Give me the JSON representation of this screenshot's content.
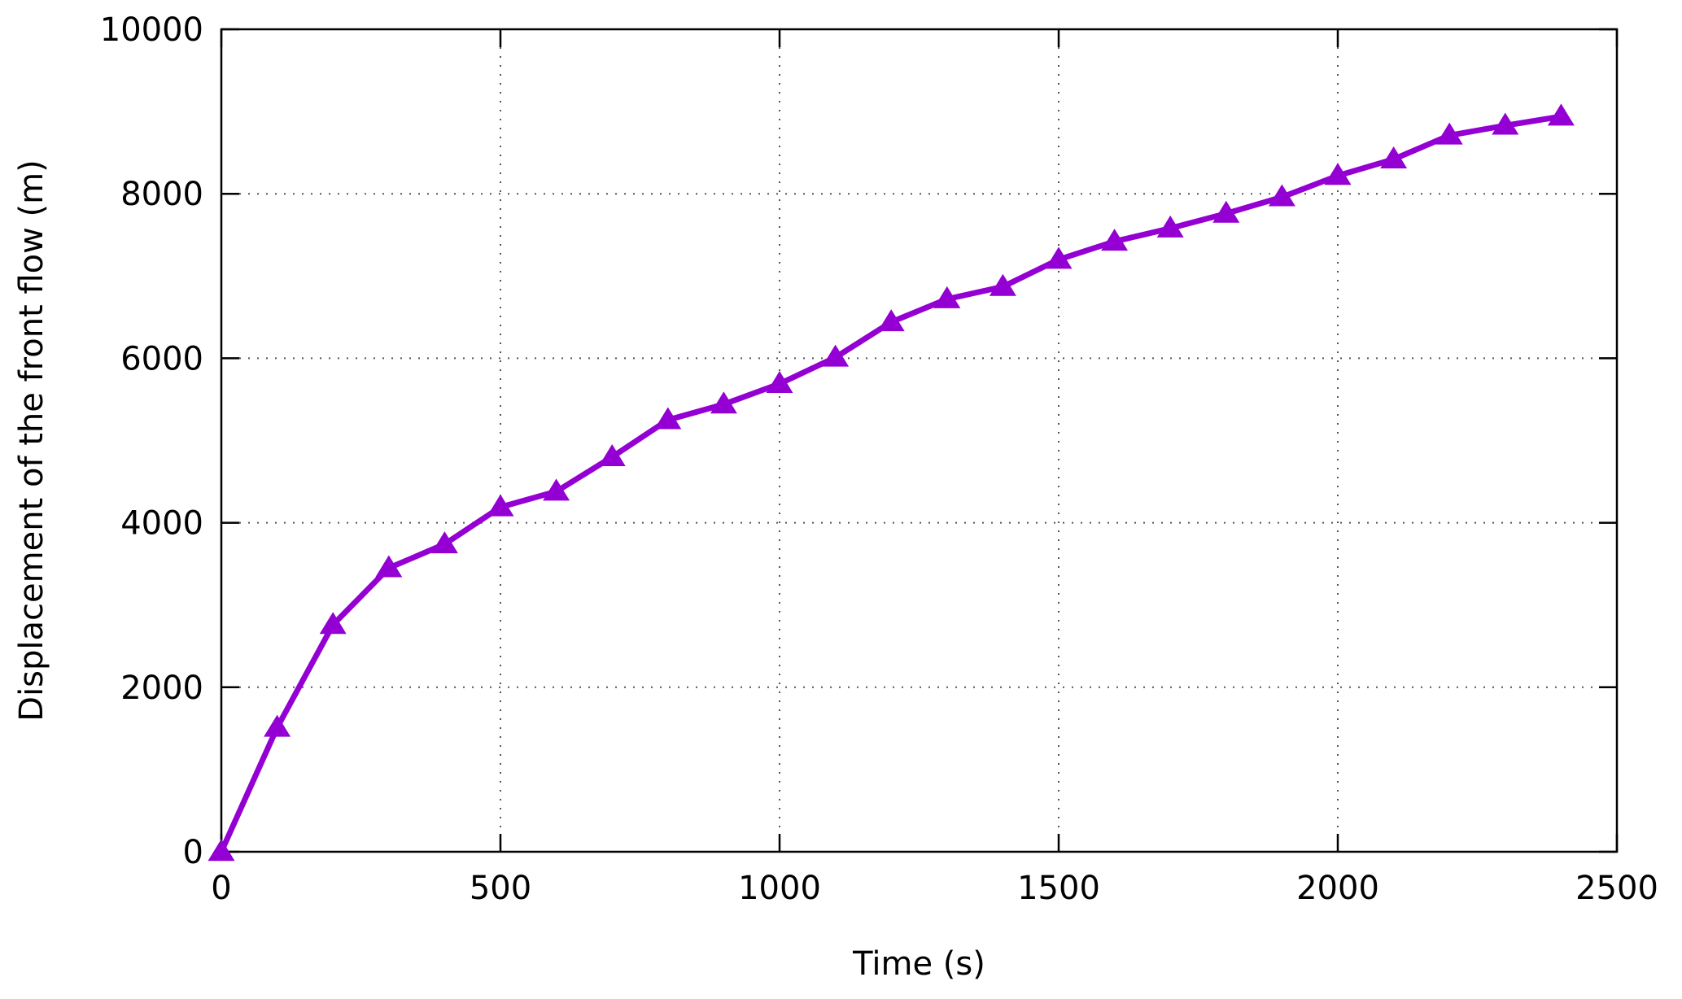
{
  "chart_data": {
    "type": "line",
    "title": "",
    "xlabel": "Time (s)",
    "ylabel": "Displacement of the front flow (m)",
    "xlim": [
      0,
      2500
    ],
    "ylim": [
      0,
      10000
    ],
    "xticks": [
      0,
      500,
      1000,
      1500,
      2000,
      2500
    ],
    "yticks": [
      0,
      2000,
      4000,
      6000,
      8000,
      10000
    ],
    "xtick_labels": [
      "0",
      "500",
      "1000",
      "1500",
      "2000",
      "2500"
    ],
    "ytick_labels": [
      "0",
      "2000",
      "4000",
      "6000",
      "8000",
      "10000"
    ],
    "grid": true,
    "legend": "none",
    "marker": "triangle",
    "series": [
      {
        "color": "#9400d3",
        "x": [
          0,
          100,
          200,
          300,
          400,
          500,
          600,
          700,
          800,
          900,
          1000,
          1100,
          1200,
          1300,
          1400,
          1500,
          1600,
          1700,
          1800,
          1900,
          2000,
          2100,
          2200,
          2300,
          2400
        ],
        "y": [
          0,
          1510,
          2760,
          3450,
          3740,
          4190,
          4380,
          4800,
          5250,
          5440,
          5690,
          6010,
          6440,
          6720,
          6870,
          7200,
          7420,
          7580,
          7760,
          7960,
          8220,
          8420,
          8710,
          8830,
          8940
        ]
      }
    ]
  }
}
